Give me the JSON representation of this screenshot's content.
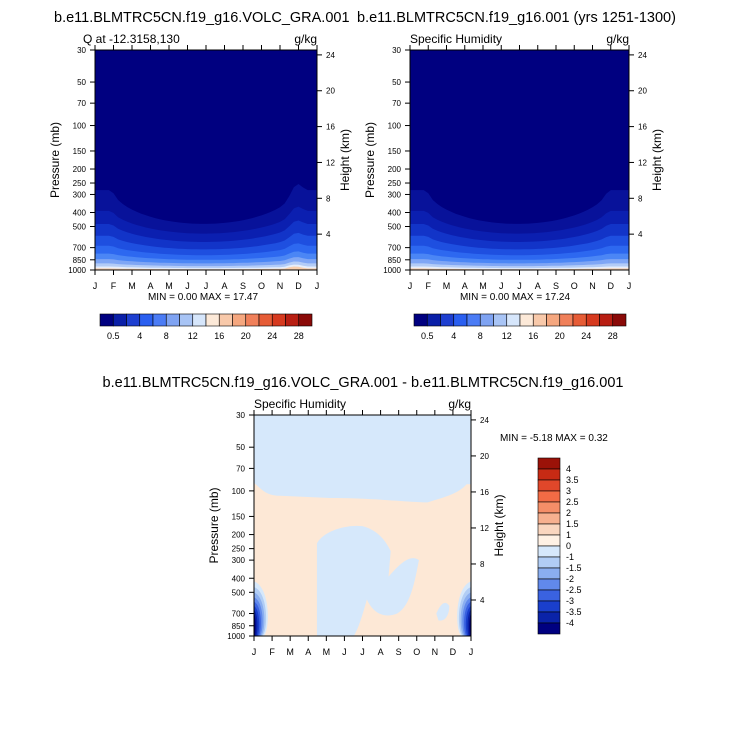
{
  "chart_data": [
    {
      "type": "heatmap",
      "title": "b.e11.BLMTRC5CN.f19_g16.VOLC_GRA.001",
      "left_label": "Q at -12.3158,130",
      "right_label": "g/kg",
      "ylabel": "Pressure (mb)",
      "ylabel_right": "Height (km)",
      "x_ticks": [
        "J",
        "F",
        "M",
        "A",
        "M",
        "J",
        "J",
        "A",
        "S",
        "O",
        "N",
        "D",
        "J"
      ],
      "y_ticks": [
        "30",
        "50",
        "70",
        "100",
        "150",
        "200",
        "250",
        "300",
        "400",
        "500",
        "700",
        "850",
        "1000"
      ],
      "y_ticks_right": [
        "24",
        "20",
        "16",
        "12",
        "8",
        "4"
      ],
      "stats": "MIN =   0.00 MAX =  17.47",
      "min": 0.0,
      "max": 17.47
    },
    {
      "type": "heatmap",
      "title": "b.e11.BLMTRC5CN.f19_g16.001 (yrs 1251-1300)",
      "left_label": "Specific Humidity",
      "right_label": "g/kg",
      "ylabel": "Pressure (mb)",
      "ylabel_right": "Height (km)",
      "x_ticks": [
        "J",
        "F",
        "M",
        "A",
        "M",
        "J",
        "J",
        "A",
        "S",
        "O",
        "N",
        "D",
        "J"
      ],
      "y_ticks": [
        "30",
        "50",
        "70",
        "100",
        "150",
        "200",
        "250",
        "300",
        "400",
        "500",
        "700",
        "850",
        "1000"
      ],
      "y_ticks_right": [
        "24",
        "20",
        "16",
        "12",
        "8",
        "4"
      ],
      "stats": "MIN =   0.00 MAX =  17.24",
      "min": 0.0,
      "max": 17.24
    },
    {
      "type": "heatmap",
      "title": "b.e11.BLMTRC5CN.f19_g16.VOLC_GRA.001 - b.e11.BLMTRC5CN.f19_g16.001",
      "left_label": "Specific Humidity",
      "right_label": "g/kg",
      "ylabel": "Pressure (mb)",
      "ylabel_right": "Height (km)",
      "x_ticks": [
        "J",
        "F",
        "M",
        "A",
        "M",
        "J",
        "J",
        "A",
        "S",
        "O",
        "N",
        "D",
        "J"
      ],
      "y_ticks": [
        "30",
        "50",
        "70",
        "100",
        "150",
        "200",
        "250",
        "300",
        "400",
        "500",
        "700",
        "850",
        "1000"
      ],
      "y_ticks_right": [
        "24",
        "20",
        "16",
        "12",
        "8",
        "4"
      ],
      "stats": "MIN =  -5.18 MAX =   0.32",
      "min": -5.18,
      "max": 0.32
    }
  ],
  "colorbar_top": {
    "labels": [
      "0.5",
      "4",
      "8",
      "12",
      "16",
      "20",
      "24",
      "28"
    ],
    "colors": [
      "#000080",
      "#0a1fa8",
      "#1e3fd0",
      "#2a5ff0",
      "#4b7cf5",
      "#7fa3f2",
      "#a8c4f5",
      "#d6e6fb",
      "#fce9d8",
      "#f8c9aa",
      "#f5a77f",
      "#f0805a",
      "#e65c36",
      "#d63a1f",
      "#b81e12",
      "#8a0a08"
    ]
  },
  "colorbar_diff": {
    "labels": [
      "4",
      "3.5",
      "3",
      "2.5",
      "2",
      "1.5",
      "1",
      "0",
      "-1",
      "-1.5",
      "-2",
      "-2.5",
      "-3",
      "-3.5",
      "-4"
    ],
    "colors": [
      "#9b1208",
      "#c72a14",
      "#e0472a",
      "#f26b45",
      "#f58e68",
      "#f7b08f",
      "#fad6bf",
      "#fff1e4",
      "#d6e8fb",
      "#b1cdf5",
      "#8aaef0",
      "#6189eb",
      "#3a62e0",
      "#1a3fcc",
      "#0a23a8",
      "#000080"
    ]
  }
}
